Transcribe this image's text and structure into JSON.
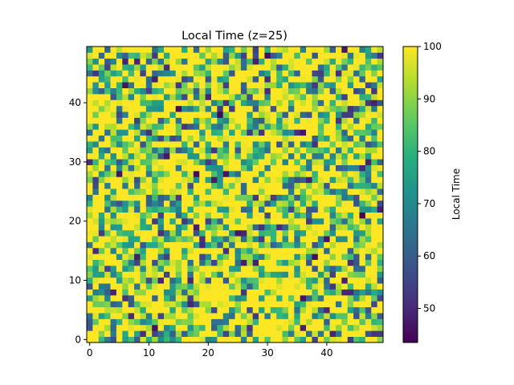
{
  "chart_data": {
    "type": "heatmap",
    "title": "Local Time (z=25)",
    "xlabel": "",
    "ylabel": "",
    "nx": 50,
    "ny": 50,
    "x_ticks": [
      0,
      10,
      20,
      30,
      40
    ],
    "y_ticks": [
      0,
      10,
      20,
      30,
      40
    ],
    "xlim": [
      -0.5,
      49.5
    ],
    "ylim": [
      -0.5,
      49.5
    ],
    "origin": "lower",
    "colormap": "viridis",
    "colorbar": {
      "label": "Local Time",
      "vmin": 43.5,
      "vmax": 100,
      "ticks": [
        50,
        60,
        70,
        80,
        90,
        100
      ]
    },
    "value_distribution": {
      "note_ignore": "",
      "saturated_fraction": 0.42,
      "low_min": 43.5
    },
    "values": []
  }
}
